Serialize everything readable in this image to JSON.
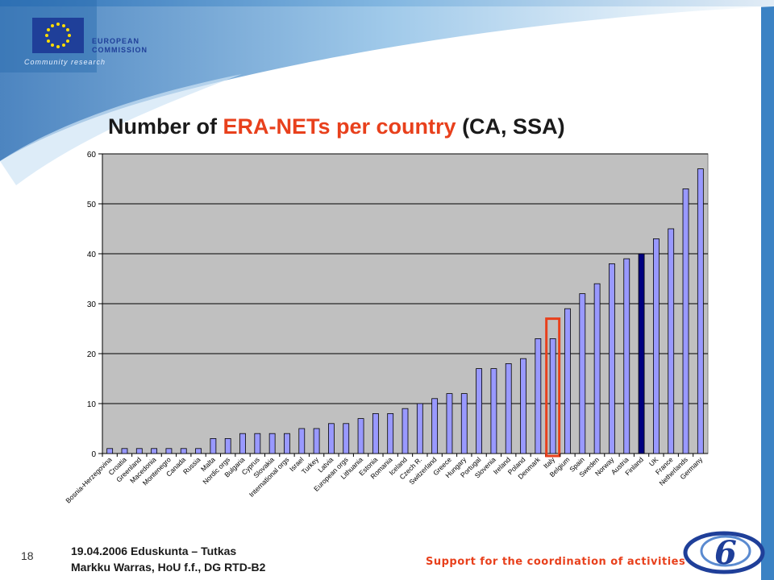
{
  "header": {
    "logo_text": "EUROPEAN\nCOMMISSION",
    "logo_sub": "Community research"
  },
  "slide": {
    "title_before": "Number of ",
    "title_highlight": "ERA-NETs per country",
    "title_after": " (CA, SSA)"
  },
  "footer": {
    "page_number": "18",
    "line1": "19.04.2006 Eduskunta – Tutkas",
    "line2": "Markku Warras, HoU f.f., DG RTD-B2",
    "tagline": "Support for the coordination of activities"
  },
  "colors": {
    "bar": "#9999ff",
    "bar_highlight": "#000080",
    "plot_bg": "#c0c0c0",
    "highlight_box": "#e8401c",
    "brand_blue": "#1f3f99"
  },
  "chart_data": {
    "type": "bar",
    "title": "Number of ERA-NETs per country (CA, SSA)",
    "ylim": [
      0,
      60
    ],
    "yticks": [
      0,
      10,
      20,
      30,
      40,
      50,
      60
    ],
    "grid": true,
    "categories": [
      "Bosnia-Herzegovina",
      "Croatia",
      "Greenland",
      "Macedonia",
      "Montenegro",
      "Canada",
      "Russia",
      "Malta",
      "Nordic orgs",
      "Bulgaria",
      "Cyprus",
      "Slovakia",
      "International orgs",
      "Israel",
      "Turkey",
      "Latvia",
      "European orgs",
      "Lithuania",
      "Estonia",
      "Romania",
      "Iceland",
      "Czech R.",
      "Switzerland",
      "Greece",
      "Hungary",
      "Portugal",
      "Slovenia",
      "Ireland",
      "Poland",
      "Denmark",
      "Italy",
      "Belgium",
      "Spain",
      "Sweden",
      "Norway",
      "Austria",
      "Finland",
      "UK",
      "France",
      "Netherlands",
      "Germany"
    ],
    "values": [
      1,
      1,
      1,
      1,
      1,
      1,
      1,
      3,
      3,
      4,
      4,
      4,
      4,
      5,
      5,
      6,
      6,
      7,
      8,
      8,
      9,
      10,
      11,
      12,
      12,
      17,
      17,
      18,
      19,
      23,
      23,
      29,
      32,
      34,
      38,
      39,
      40,
      43,
      45,
      53,
      57
    ],
    "highlighted_bar": "Finland",
    "boxed_bar": "Italy"
  }
}
